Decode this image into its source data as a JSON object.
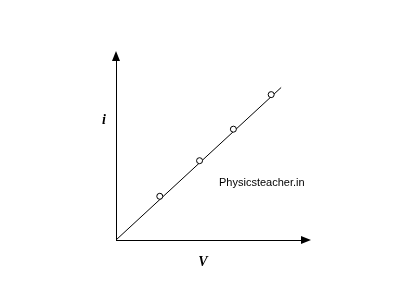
{
  "chart_data": {
    "type": "scatter",
    "x_label": "V",
    "y_label": "i",
    "annotations": [
      "Physicsteacher.in"
    ],
    "xlim": [
      0,
      19
    ],
    "ylim": [
      0,
      18
    ],
    "grid": false,
    "tick_labels": false,
    "series": [
      {
        "x": [
          4.4,
          8.4,
          11.8,
          15.6
        ],
        "values": [
          4.3,
          7.8,
          10.9,
          14.3
        ],
        "color": "#000000",
        "marker": "circle",
        "line_style": "none"
      },
      {
        "x": [
          0,
          16.6
        ],
        "values": [
          0,
          15.0
        ],
        "color": "#000000",
        "marker": "none",
        "line_style": "solid"
      }
    ]
  }
}
